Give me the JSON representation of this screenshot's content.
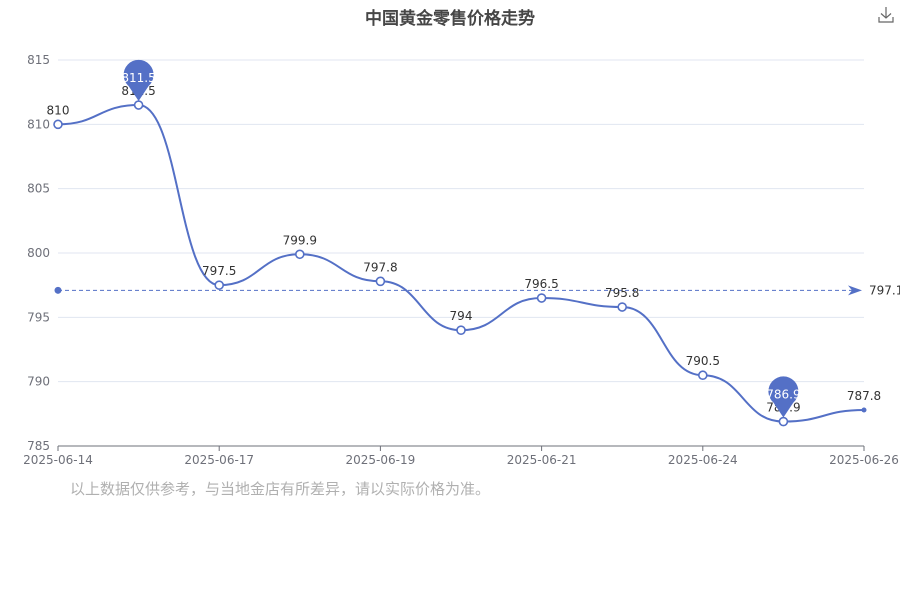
{
  "chart_data": {
    "type": "line",
    "title": "中国黄金零售价格走势",
    "x": [
      "2025-06-14",
      "2025-06-15",
      "2025-06-17",
      "2025-06-18",
      "2025-06-19",
      "2025-06-20",
      "2025-06-21",
      "2025-06-23",
      "2025-06-24",
      "2025-06-25",
      "2025-06-26"
    ],
    "x_tick_labels": [
      "2025-06-14",
      "2025-06-17",
      "2025-06-19",
      "2025-06-21",
      "2025-06-24",
      "2025-06-26"
    ],
    "series": [
      {
        "values": [
          810,
          811.5,
          797.5,
          799.9,
          797.8,
          794,
          796.5,
          795.8,
          790.5,
          786.9,
          787.8
        ]
      }
    ],
    "ylim": [
      785,
      815
    ],
    "yticks": [
      785,
      790,
      795,
      800,
      805,
      810,
      815
    ],
    "mark_points": [
      {
        "type": "max",
        "label": "811.5",
        "value": 811.5
      },
      {
        "type": "min",
        "label": "786.9",
        "value": 786.9
      }
    ],
    "mark_line": {
      "type": "average",
      "label": "797.1",
      "value": 797.1
    },
    "grid": "horizontal",
    "smooth": true,
    "colors": {
      "line": "#5470c6",
      "grid": "#e0e6f1",
      "axis": "#6e7079",
      "pin": "#5470c6"
    }
  },
  "toolbar": {
    "download_icon": "download-icon"
  },
  "disclaimer": "以上数据仅供参考，与当地金店有所差异，请以实际价格为准。"
}
